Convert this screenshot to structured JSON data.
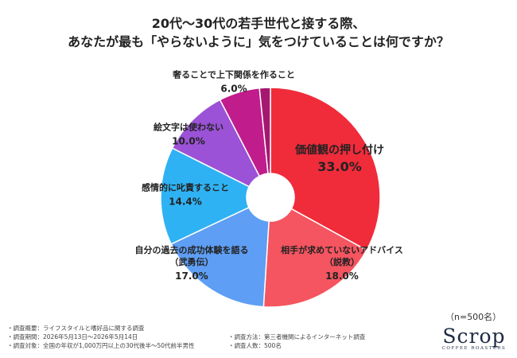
{
  "chart_data": {
    "type": "pie",
    "variant": "donut",
    "title_lines": [
      "20代〜30代の若手世代と接する際、",
      "あなたが最も「やらないように」気をつけていることは何ですか？"
    ],
    "slices": [
      {
        "label_lines": [
          "価値観の押し付け"
        ],
        "value": 33.0,
        "display": "33.0%",
        "color": "#f02b3a",
        "label_color": "#222222"
      },
      {
        "label_lines": [
          "相手が求めていないアドバイス",
          "（説教）"
        ],
        "value": 18.0,
        "display": "18.0%",
        "color": "#f45560",
        "label_color": "#222222"
      },
      {
        "label_lines": [
          "自分の過去の成功体験を語る",
          "（武勇伝）"
        ],
        "value": 17.0,
        "display": "17.0%",
        "color": "#5e9ef4",
        "label_color": "#222222"
      },
      {
        "label_lines": [
          "感情的に叱責すること"
        ],
        "value": 14.4,
        "display": "14.4%",
        "color": "#2fb2f3",
        "label_color": "#222222"
      },
      {
        "label_lines": [
          "絵文字は使わない"
        ],
        "value": 10.0,
        "display": "10.0%",
        "color": "#9b52d6",
        "label_color": "#222222"
      },
      {
        "label_lines": [
          "奢ることで上下関係を作ること"
        ],
        "value": 6.0,
        "display": "6.0%",
        "color": "#c01c8c",
        "label_color": "#222222"
      },
      {
        "label_lines": [],
        "value": 1.6,
        "display": "",
        "color": "#a51870",
        "label_color": "#222222"
      }
    ]
  },
  "sample_size": "（n=500名）",
  "notes_left": [
    "調査概要：ライフスタイルと嗜好品に関する調査",
    "調査期間：2026年5月13日〜2026年5月14日",
    "調査対象：全国の年収が1,000万円以上の30代後半〜50代前半男性"
  ],
  "notes_right": [
    "調査方法：第三者機関によるインターネット調査",
    "調査人数：500名"
  ],
  "logo": {
    "word": "Scrop",
    "sub": "COFFEE ROASTERS"
  }
}
